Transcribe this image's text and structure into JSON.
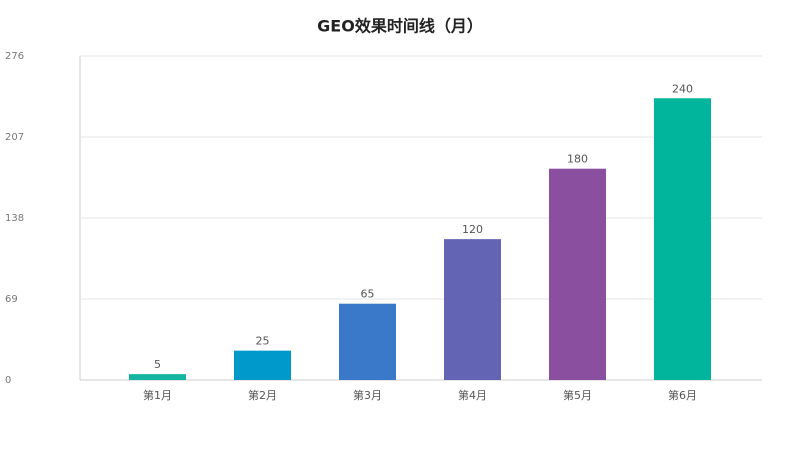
{
  "chart_data": {
    "type": "bar",
    "title": "GEO效果时间线（月）",
    "categories": [
      "第1月",
      "第2月",
      "第3月",
      "第4月",
      "第5月",
      "第6月"
    ],
    "values": [
      5,
      25,
      65,
      120,
      180,
      240
    ],
    "colors": [
      "#13b5a0",
      "#0099cc",
      "#3a78c9",
      "#6464b4",
      "#8a4f9f",
      "#00b59c"
    ],
    "ylim": [
      0,
      276
    ],
    "yticks": [
      0,
      69,
      138,
      207,
      276
    ],
    "grid": true
  }
}
